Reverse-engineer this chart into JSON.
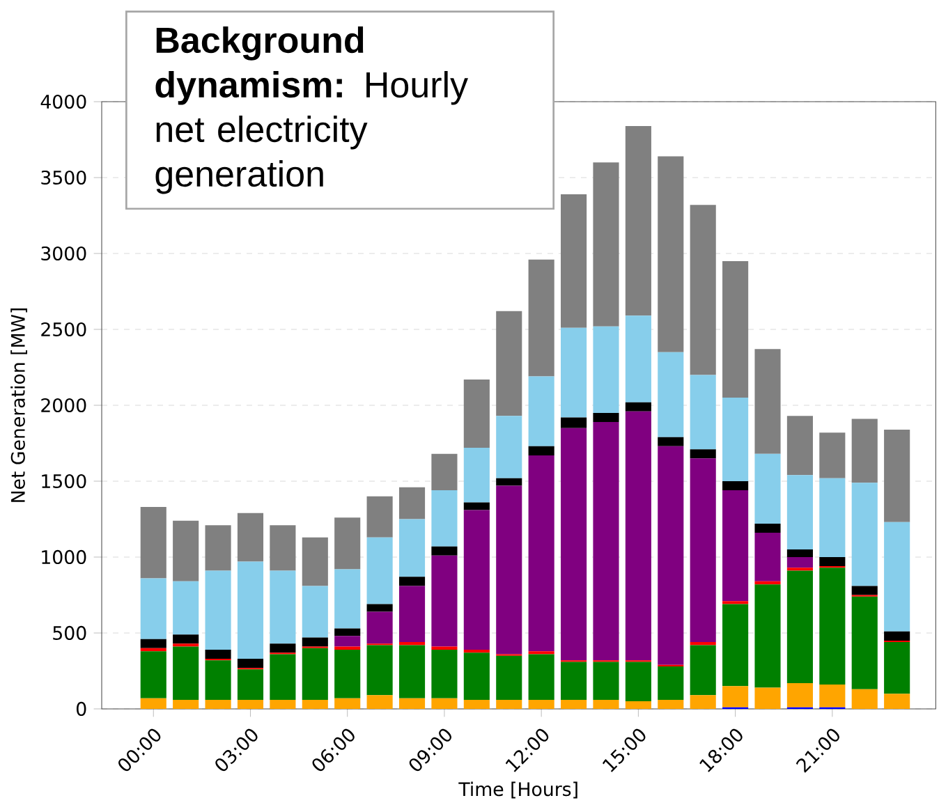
{
  "chart_data": {
    "type": "bar",
    "stacked": true,
    "title": "**Background dynamism:** Hourly net electricity generation",
    "xlabel": "Time [Hours]",
    "ylabel": "Net Generation [MW]",
    "x": [
      0,
      1,
      2,
      3,
      4,
      5,
      6,
      7,
      8,
      9,
      10,
      11,
      12,
      13,
      14,
      15,
      16,
      17,
      18,
      19,
      20,
      21,
      22,
      23
    ],
    "xlim": [
      -1.6,
      24.2
    ],
    "xticks": [
      {
        "value": 0,
        "label": "00:00"
      },
      {
        "value": 3,
        "label": "03:00"
      },
      {
        "value": 6,
        "label": "06:00"
      },
      {
        "value": 9,
        "label": "09:00"
      },
      {
        "value": 12,
        "label": "12:00"
      },
      {
        "value": 15,
        "label": "15:00"
      },
      {
        "value": 18,
        "label": "18:00"
      },
      {
        "value": 21,
        "label": "21:00"
      }
    ],
    "ylim": [
      0,
      4000
    ],
    "yticks": [
      0,
      500,
      1000,
      1500,
      2000,
      2500,
      3000,
      3500,
      4000
    ],
    "grid": "y",
    "series": [
      {
        "color": "#0000ff",
        "values": [
          0,
          0,
          0,
          0,
          0,
          0,
          0,
          0,
          0,
          0,
          0,
          0,
          0,
          0,
          0,
          0,
          0,
          0,
          10,
          0,
          10,
          10,
          0,
          0
        ]
      },
      {
        "color": "#ffa500",
        "values": [
          70,
          60,
          60,
          60,
          60,
          60,
          70,
          90,
          70,
          70,
          60,
          60,
          60,
          60,
          60,
          50,
          60,
          90,
          140,
          140,
          160,
          150,
          130,
          100
        ]
      },
      {
        "color": "#008000",
        "values": [
          310,
          350,
          260,
          200,
          300,
          340,
          320,
          330,
          350,
          320,
          310,
          290,
          300,
          250,
          250,
          260,
          220,
          330,
          540,
          680,
          740,
          770,
          610,
          340
        ]
      },
      {
        "color": "#ff0000",
        "values": [
          20,
          20,
          10,
          10,
          10,
          10,
          20,
          10,
          20,
          20,
          20,
          10,
          20,
          10,
          10,
          10,
          10,
          20,
          20,
          20,
          20,
          10,
          10,
          10
        ]
      },
      {
        "color": "#800080",
        "values": [
          0,
          0,
          0,
          0,
          0,
          0,
          70,
          210,
          370,
          600,
          920,
          1110,
          1290,
          1530,
          1570,
          1640,
          1440,
          1210,
          730,
          320,
          70,
          0,
          0,
          0
        ]
      },
      {
        "color": "#000000",
        "values": [
          60,
          60,
          60,
          60,
          60,
          60,
          50,
          50,
          60,
          60,
          50,
          50,
          60,
          70,
          60,
          60,
          60,
          60,
          60,
          60,
          50,
          60,
          60,
          60
        ]
      },
      {
        "color": "#87ceeb",
        "values": [
          400,
          350,
          520,
          640,
          480,
          340,
          390,
          440,
          380,
          370,
          360,
          410,
          460,
          590,
          570,
          570,
          560,
          490,
          550,
          460,
          490,
          520,
          680,
          720
        ]
      },
      {
        "color": "#808080",
        "values": [
          470,
          400,
          300,
          320,
          300,
          320,
          340,
          270,
          210,
          240,
          450,
          690,
          770,
          880,
          1080,
          1250,
          1290,
          1120,
          900,
          690,
          390,
          300,
          420,
          610
        ]
      }
    ]
  }
}
